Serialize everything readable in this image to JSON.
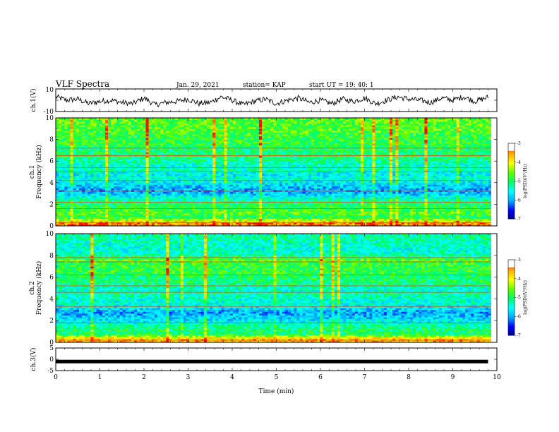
{
  "header": {
    "title": "VLF Spectra",
    "date": "Jan. 29, 2021",
    "station": "station= KAP",
    "start": "start  UT =   19: 40: 1"
  },
  "colors": {
    "colormap": [
      "#00008b",
      "#0000ff",
      "#00aaff",
      "#00ffff",
      "#00ff66",
      "#66ff00",
      "#ffff00",
      "#ffaa00",
      "#ff0000",
      "#ffffff"
    ],
    "trace": "#000000",
    "ch3_bar": "#000000"
  },
  "colorbar": {
    "label": "log(PSD)(V²/Hz)",
    "ticks": [
      "-3",
      "-4",
      "-5",
      "-6",
      "-7"
    ]
  },
  "chart_data": [
    {
      "type": "line",
      "panel": "ch1-waveform",
      "ylabel": "ch.1(V)",
      "xlim": [
        0,
        10
      ],
      "ylim": [
        -10,
        10
      ],
      "ytick_labels": [
        "10",
        "-10"
      ],
      "x": [
        0,
        0.25,
        0.5,
        0.75,
        1.0,
        1.25,
        1.5,
        1.75,
        2.0,
        2.25,
        2.5,
        2.75,
        3.0,
        3.25,
        3.5,
        3.75,
        4.0,
        4.25,
        4.5,
        4.75,
        5.0,
        5.25,
        5.5,
        5.75,
        6.0,
        6.25,
        6.5,
        6.75,
        7.0,
        7.25,
        7.5,
        7.75,
        8.0,
        8.25,
        8.5,
        8.75,
        9.0,
        9.25,
        9.5,
        9.75
      ],
      "values": [
        3,
        0,
        1,
        -3,
        -1,
        0,
        -2,
        -3,
        2,
        -4,
        -2,
        -1,
        1,
        -3,
        -2,
        3,
        0,
        -4,
        -1,
        1,
        -3,
        0,
        2,
        -2,
        0,
        -3,
        1,
        -1,
        2,
        -3,
        0,
        3,
        1,
        0,
        -2,
        2,
        0,
        3,
        -1,
        2
      ]
    },
    {
      "type": "heatmap",
      "panel": "ch1-spectrogram",
      "title": "ch.1",
      "ylabel": "Frequency (kHz)",
      "xlim": [
        0,
        10
      ],
      "ylim": [
        0,
        10
      ],
      "ytick_labels": [
        "0",
        "2",
        "4",
        "6",
        "8",
        "10"
      ],
      "color_levels": [
        -7,
        -3
      ],
      "frequency_profile_khz": [
        {
          "f": 0.3,
          "v": 0.9
        },
        {
          "f": 0.8,
          "v": 0.5
        },
        {
          "f": 1.2,
          "v": 0.6
        },
        {
          "f": 1.6,
          "v": 0.55
        },
        {
          "f": 2.0,
          "v": 0.5
        },
        {
          "f": 2.4,
          "v": 0.45
        },
        {
          "f": 2.8,
          "v": 0.35
        },
        {
          "f": 3.2,
          "v": 0.25
        },
        {
          "f": 3.6,
          "v": 0.3
        },
        {
          "f": 4.0,
          "v": 0.35
        },
        {
          "f": 4.4,
          "v": 0.4
        },
        {
          "f": 4.8,
          "v": 0.35
        },
        {
          "f": 5.2,
          "v": 0.45
        },
        {
          "f": 5.6,
          "v": 0.4
        },
        {
          "f": 6.0,
          "v": 0.45
        },
        {
          "f": 6.4,
          "v": 0.5
        },
        {
          "f": 6.8,
          "v": 0.5
        },
        {
          "f": 7.2,
          "v": 0.5
        },
        {
          "f": 7.6,
          "v": 0.55
        },
        {
          "f": 8.0,
          "v": 0.55
        },
        {
          "f": 8.4,
          "v": 0.55
        },
        {
          "f": 8.8,
          "v": 0.6
        },
        {
          "f": 9.2,
          "v": 0.58
        },
        {
          "f": 9.6,
          "v": 0.6
        }
      ],
      "line_frequencies_khz": [
        0.3,
        1.6,
        2.2,
        3.2,
        4.2,
        5.0,
        5.4,
        6.5,
        7.2
      ]
    },
    {
      "type": "heatmap",
      "panel": "ch2-spectrogram",
      "title": "ch.2",
      "ylabel": "Frequency (kHz)",
      "xlim": [
        0,
        10
      ],
      "ylim": [
        0,
        10
      ],
      "ytick_labels": [
        "0",
        "2",
        "4",
        "6",
        "8",
        "10"
      ],
      "color_levels": [
        -7,
        -3
      ],
      "frequency_profile_khz": [
        {
          "f": 0.3,
          "v": 0.85
        },
        {
          "f": 0.8,
          "v": 0.5
        },
        {
          "f": 1.2,
          "v": 0.5
        },
        {
          "f": 1.6,
          "v": 0.45
        },
        {
          "f": 2.0,
          "v": 0.35
        },
        {
          "f": 2.4,
          "v": 0.3
        },
        {
          "f": 2.8,
          "v": 0.25
        },
        {
          "f": 3.2,
          "v": 0.35
        },
        {
          "f": 3.6,
          "v": 0.4
        },
        {
          "f": 4.0,
          "v": 0.4
        },
        {
          "f": 4.4,
          "v": 0.45
        },
        {
          "f": 4.8,
          "v": 0.4
        },
        {
          "f": 5.2,
          "v": 0.45
        },
        {
          "f": 5.6,
          "v": 0.5
        },
        {
          "f": 6.0,
          "v": 0.5
        },
        {
          "f": 6.4,
          "v": 0.55
        },
        {
          "f": 6.8,
          "v": 0.55
        },
        {
          "f": 7.2,
          "v": 0.55
        },
        {
          "f": 7.6,
          "v": 0.6
        },
        {
          "f": 8.0,
          "v": 0.45
        },
        {
          "f": 8.4,
          "v": 0.4
        },
        {
          "f": 8.8,
          "v": 0.4
        },
        {
          "f": 9.2,
          "v": 0.42
        },
        {
          "f": 9.6,
          "v": 0.45
        }
      ],
      "line_frequencies_khz": [
        0.2,
        1.8,
        3.3,
        4.6,
        5.2,
        6.2,
        7.4,
        7.8
      ]
    },
    {
      "type": "line",
      "panel": "ch3-waveform",
      "ylabel": "ch.3(V)",
      "xlabel": "Time (min)",
      "xlim": [
        0,
        10
      ],
      "ylim": [
        -5,
        5
      ],
      "ytick_labels": [
        "5",
        "0",
        "-5"
      ],
      "xtick_labels": [
        "0",
        "1",
        "2",
        "3",
        "4",
        "5",
        "6",
        "7",
        "8",
        "9",
        "10"
      ],
      "x": [
        0,
        9.8
      ],
      "values": [
        -1,
        -1
      ]
    }
  ]
}
